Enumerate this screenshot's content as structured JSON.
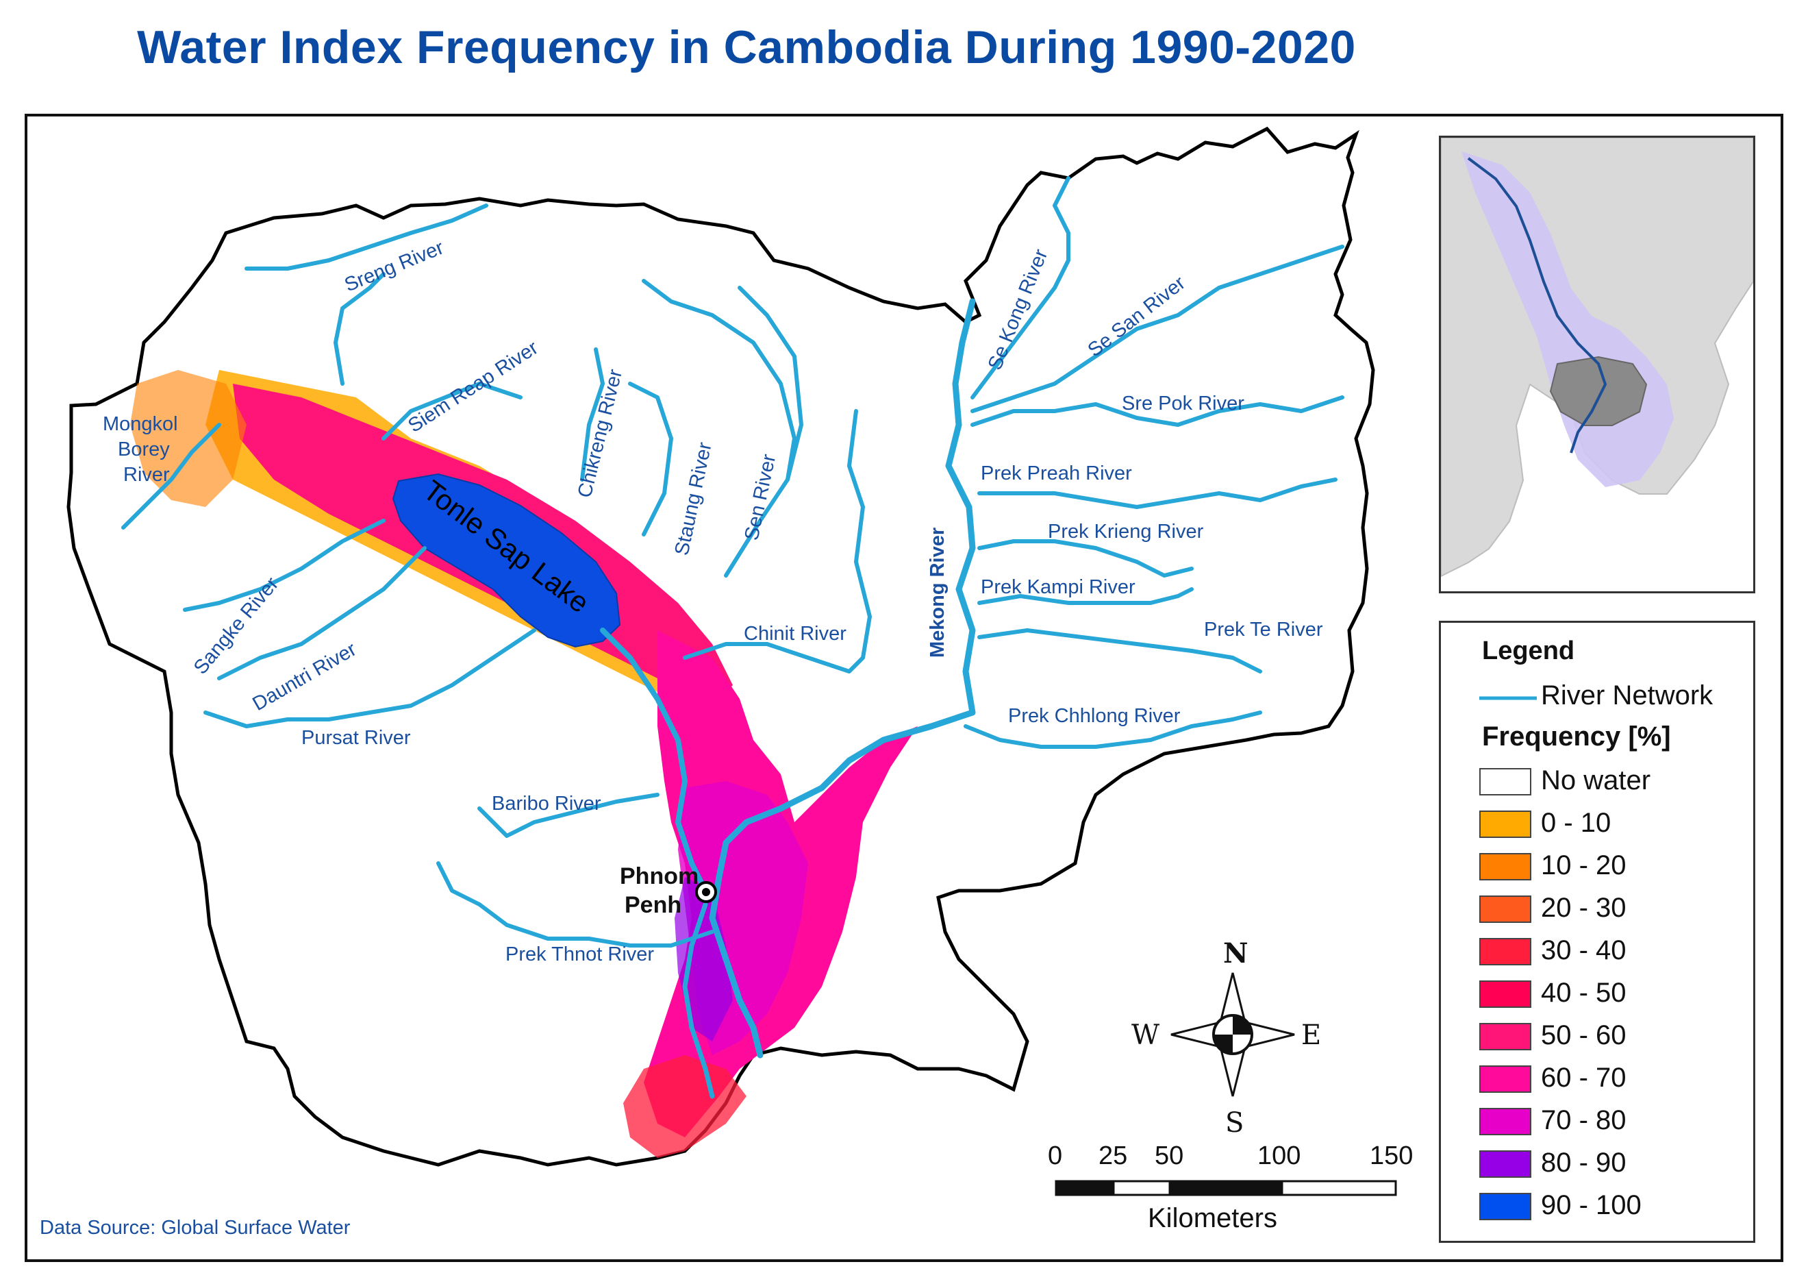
{
  "title": "Water Index Frequency in Cambodia During 1990-2020",
  "source_note": "Data Source: Global Surface Water",
  "capital": {
    "name_line1": "Phnom",
    "name_line2": "Penh"
  },
  "lake_label": "Tonle Sap Lake",
  "rivers": [
    "Sreng River",
    "Siem Reap River",
    "Mongkol",
    "Borey",
    "River",
    "Chikreng River",
    "Staung River",
    "Sen River",
    "Se Kong River",
    "Se San River",
    "Sre Pok River",
    "Prek Preah River",
    "Prek Krieng River",
    "Prek Kampi River",
    "Prek Te River",
    "Mekong River",
    "Chinit River",
    "Sangke River",
    "Dauntri River",
    "Pursat River",
    "Baribo River",
    "Prek Chhlong River",
    "Prek Thnot River"
  ],
  "legend": {
    "heading": "Legend",
    "river_network": "River Network",
    "frequency_heading": "Frequency [%]",
    "classes": [
      {
        "label": "No water",
        "color": "#ffffff"
      },
      {
        "label": "0 - 10",
        "color": "#ffaa00"
      },
      {
        "label": "10 - 20",
        "color": "#ff8000"
      },
      {
        "label": "20 - 30",
        "color": "#ff5a1e"
      },
      {
        "label": "30 - 40",
        "color": "#ff1e3c"
      },
      {
        "label": "40 - 50",
        "color": "#ff0055"
      },
      {
        "label": "50 - 60",
        "color": "#ff1478"
      },
      {
        "label": "60 - 70",
        "color": "#ff0a9b"
      },
      {
        "label": "70 - 80",
        "color": "#e600c8"
      },
      {
        "label": "80 - 90",
        "color": "#9600e6"
      },
      {
        "label": "90 - 100",
        "color": "#0050f0"
      }
    ],
    "river_color": "#27a6d8"
  },
  "compass": {
    "n": "N",
    "s": "S",
    "e": "E",
    "w": "W"
  },
  "scale": {
    "ticks": [
      "0",
      "25",
      "50",
      "100",
      "150"
    ],
    "unit": "Kilometers"
  },
  "colors": {
    "title": "#0b4aa2",
    "label": "#1a4fa0",
    "river": "#27a6d8",
    "lake": "#0a4de0"
  }
}
